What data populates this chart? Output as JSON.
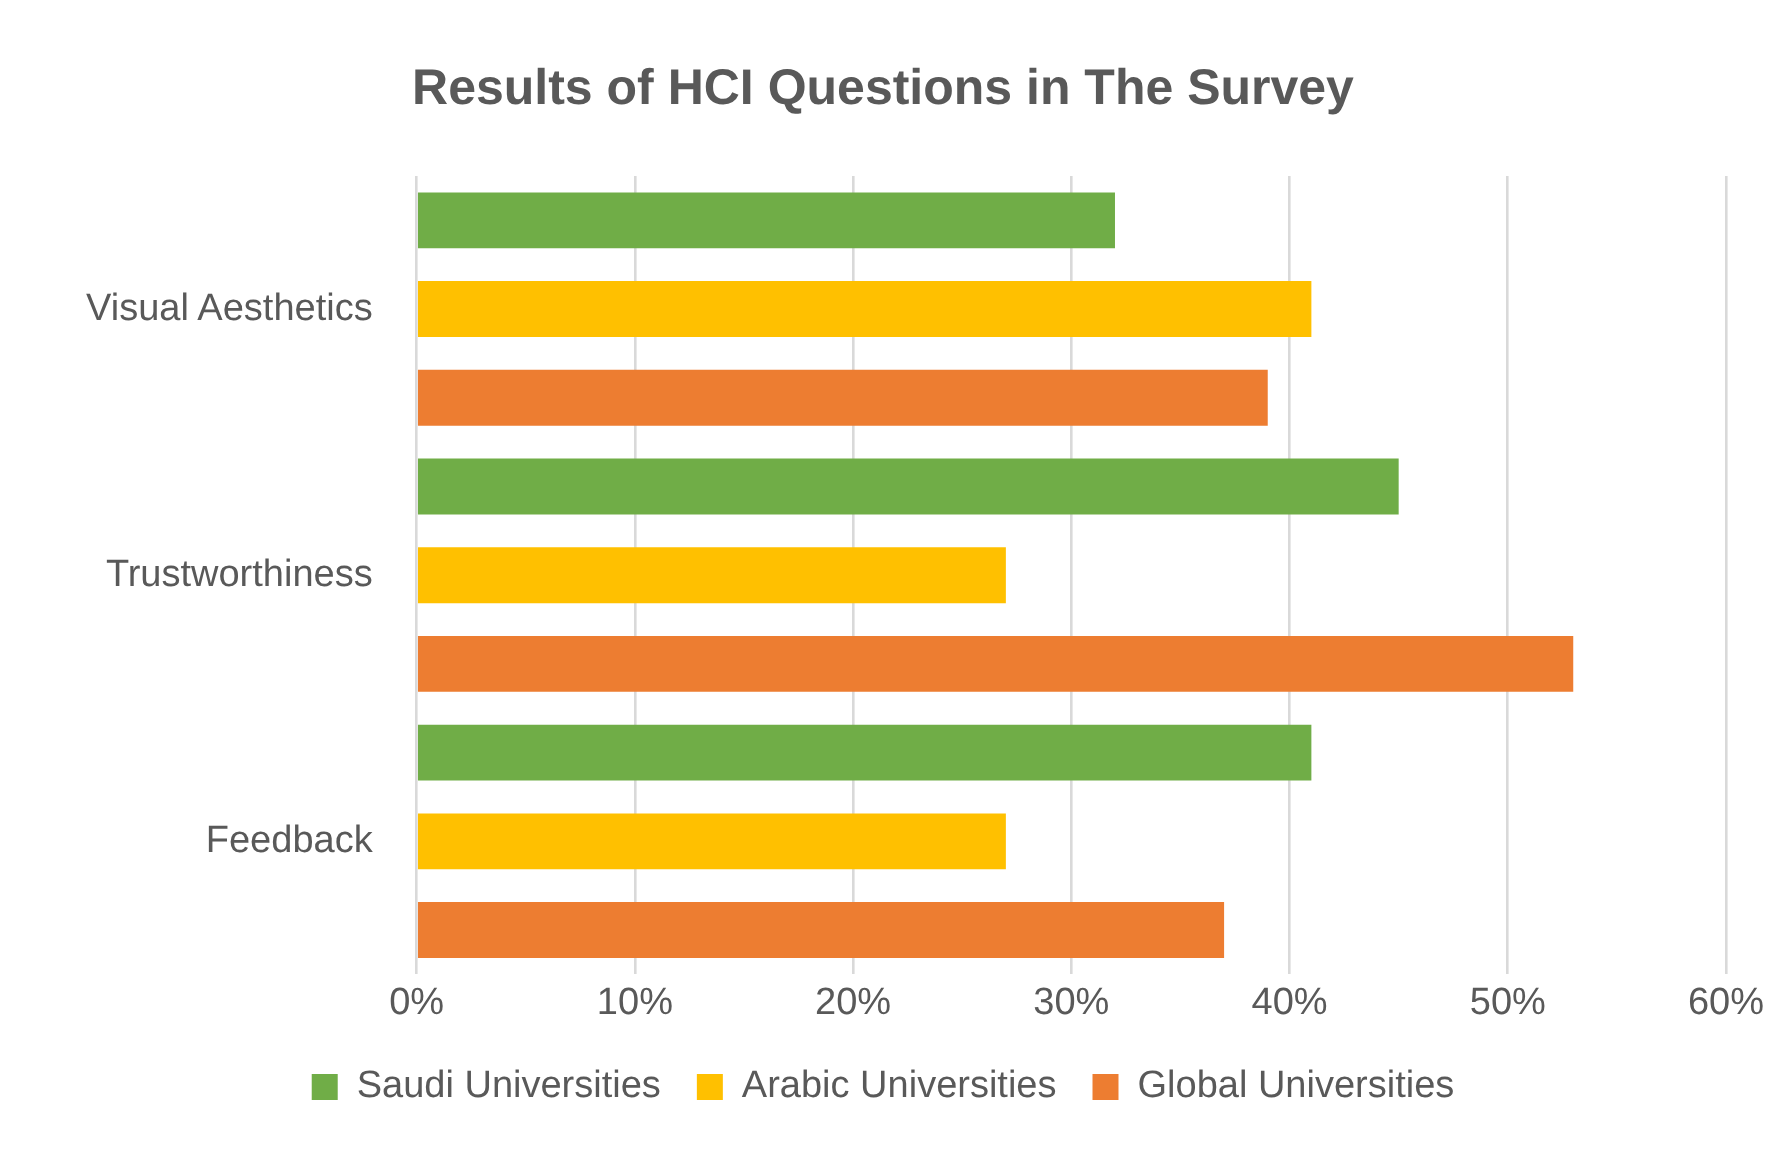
{
  "chart_data": {
    "type": "bar",
    "orientation": "horizontal",
    "title": "Results of HCI Questions in The Survey",
    "categories": [
      "Visual Aesthetics",
      "Trustworthiness",
      "Feedback"
    ],
    "series": [
      {
        "name": "Saudi Universities",
        "color": "#70ad47",
        "values": [
          32,
          45,
          41
        ]
      },
      {
        "name": "Arabic Universities",
        "color": "#ffc000",
        "values": [
          41,
          27,
          27
        ]
      },
      {
        "name": "Global Universities",
        "color": "#ed7d31",
        "values": [
          39,
          53,
          37
        ]
      }
    ],
    "xlim": [
      0,
      60
    ],
    "xticks": [
      {
        "value": 0,
        "label": "0%"
      },
      {
        "value": 10,
        "label": "10%"
      },
      {
        "value": 20,
        "label": "20%"
      },
      {
        "value": 30,
        "label": "30%"
      },
      {
        "value": 40,
        "label": "40%"
      },
      {
        "value": 50,
        "label": "50%"
      },
      {
        "value": 60,
        "label": "60%"
      }
    ],
    "grid": "x",
    "legend": "bottom"
  }
}
